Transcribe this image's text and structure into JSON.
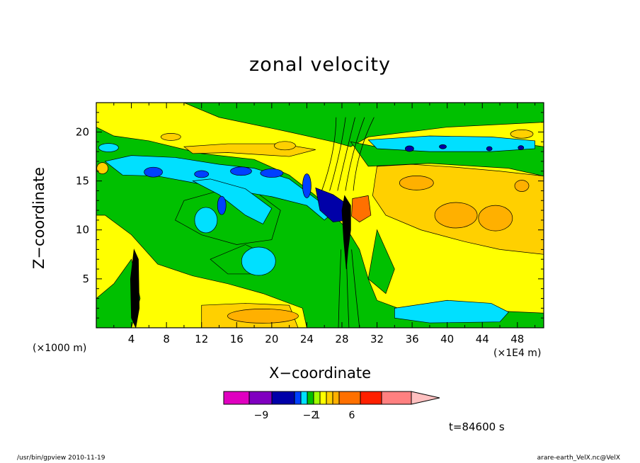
{
  "chart_data": {
    "type": "heatmap",
    "title": "zonal velocity",
    "xlabel": "X−coordinate",
    "ylabel": "Z−coordinate",
    "x_unit_label": "(×1000 m)",
    "x_scale_label": "(×1E4 m)",
    "xlim": [
      0,
      51
    ],
    "ylim": [
      0,
      23
    ],
    "x_ticks": [
      4,
      8,
      12,
      16,
      20,
      24,
      28,
      32,
      36,
      40,
      44,
      48
    ],
    "y_ticks": [
      5,
      10,
      15,
      20
    ],
    "colorbar": {
      "colors": [
        "#e000c0",
        "#8000c0",
        "#0000a8",
        "#0040ff",
        "#00e0ff",
        "#00c000",
        "#a0ff00",
        "#ffff00",
        "#ffd000",
        "#ffb000",
        "#ff7000",
        "#ff2000",
        "#ff8080",
        "#ffc0c0"
      ],
      "tick_labels": [
        "−9",
        "−2",
        "1",
        "6"
      ]
    },
    "annotation": "t=84600 s",
    "regions": [
      {
        "label": "jet_upper_left",
        "level": "cyan",
        "x": [
          3,
          22
        ],
        "z": [
          14,
          18
        ]
      },
      {
        "label": "strong_negative",
        "level": "blue",
        "x": [
          25,
          29
        ],
        "z": [
          11,
          14
        ]
      },
      {
        "label": "strong_positive",
        "level": "orange",
        "x": [
          29,
          31
        ],
        "z": [
          11,
          14
        ]
      },
      {
        "label": "upper_jet_right",
        "level": "cyan",
        "x": [
          31,
          50
        ],
        "z": [
          18,
          20
        ]
      },
      {
        "label": "mid_right_positive",
        "level": "orange",
        "x": [
          32,
          51
        ],
        "z": [
          8,
          16
        ]
      },
      {
        "label": "lower_right_negative",
        "level": "cyan",
        "x": [
          34,
          47
        ],
        "z": [
          1,
          3
        ]
      },
      {
        "label": "lower_mid_positive",
        "level": "orange",
        "x": [
          12,
          22
        ],
        "z": [
          0,
          2.5
        ]
      }
    ]
  },
  "footer": {
    "left": "/usr/bin/gpview   2010-11-19",
    "right": "arare-earth_VelX.nc@VelX"
  }
}
